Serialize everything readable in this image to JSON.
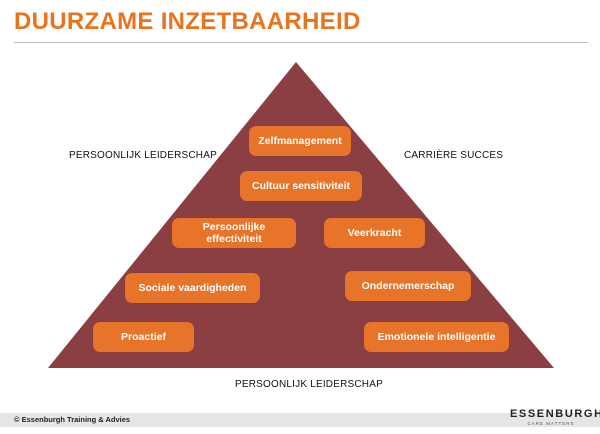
{
  "title": "DUURZAME INZETBAARHEID",
  "labels": {
    "left": "PERSOONLIJK LEIDERSCHAP",
    "right": "CARRIÈRE SUCCES",
    "bottom": "PERSOONLIJK LEIDERSCHAP"
  },
  "items": [
    "Zelfmanagement",
    "Cultuur sensitiviteit",
    "Persoonlijke\neffectiviteit",
    "Veerkracht",
    "Sociale vaardigheden",
    "Ondernemerschap",
    "Proactief",
    "Emotionele intelligentie"
  ],
  "colors": {
    "accent": "#e8741f",
    "pyramid": "#8b3f43",
    "pill": "#e8742a",
    "pill_text": "#ffffff"
  },
  "footer": {
    "copyright": "© Essenburgh Training & Advies",
    "logo_name": "ESSENBURGH",
    "logo_tagline": "CARE MATTERS"
  }
}
